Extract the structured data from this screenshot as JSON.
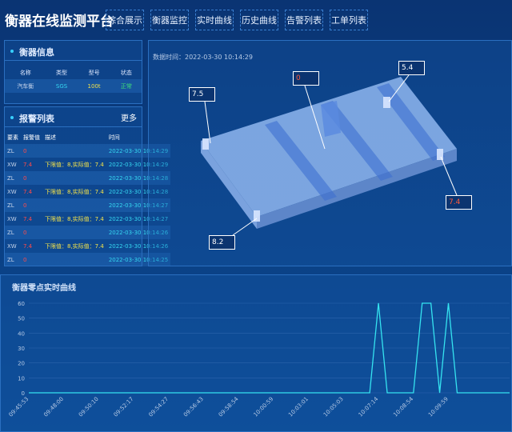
{
  "header": {
    "title": "衡器在线监测平台",
    "nav": [
      "综合展示",
      "衡器监控",
      "实时曲线",
      "历史曲线",
      "告警列表",
      "工单列表"
    ]
  },
  "info": {
    "title": "衡器信息",
    "columns": [
      "名称",
      "类型",
      "型号",
      "状态"
    ],
    "row": [
      "汽车衡",
      "SGS",
      "100t",
      "正常"
    ]
  },
  "alarms": {
    "title": "报警列表",
    "more": "更多",
    "columns": [
      "要素",
      "报警值",
      "描述",
      "时间"
    ],
    "rows": [
      [
        "ZL",
        "0",
        "",
        "2022-03-30 10:14:29"
      ],
      [
        "XW",
        "7.4",
        "下限值：8,实际值：7.4",
        "2022-03-30 10:14:29"
      ],
      [
        "ZL",
        "0",
        "",
        "2022-03-30 10:14:28"
      ],
      [
        "XW",
        "7.4",
        "下限值：8,实际值：7.4",
        "2022-03-30 10:14:28"
      ],
      [
        "ZL",
        "0",
        "",
        "2022-03-30 10:14:27"
      ],
      [
        "XW",
        "7.4",
        "下限值：8,实际值：7.4",
        "2022-03-30 10:14:27"
      ],
      [
        "ZL",
        "0",
        "",
        "2022-03-30 10:14:26"
      ],
      [
        "XW",
        "7.4",
        "下限值：8,实际值：7.4",
        "2022-03-30 10:14:26"
      ],
      [
        "ZL",
        "0",
        "",
        "2022-03-30 10:14:25"
      ]
    ]
  },
  "monitor": {
    "time": "数据时间：2022-03-30 10:14:29",
    "sensors": [
      "7.5",
      "0",
      "5.4",
      "7.4",
      "8.2"
    ]
  },
  "chart_data": {
    "type": "line",
    "title": "衡器零点实时曲线",
    "color": "#35e3f0",
    "ylim": [
      0,
      60
    ],
    "yticks": [
      0,
      10,
      20,
      30,
      40,
      50,
      60
    ],
    "grid": true,
    "categories": [
      "09:45:53",
      null,
      null,
      null,
      "09:48:00",
      null,
      null,
      null,
      "09:50:10",
      null,
      null,
      null,
      "09:52:17",
      null,
      null,
      null,
      "09:54:27",
      null,
      null,
      null,
      "09:56:43",
      null,
      null,
      null,
      "09:58:54",
      null,
      null,
      null,
      "10:00:59",
      null,
      null,
      null,
      "10:03:01",
      null,
      null,
      null,
      "10:05:03",
      null,
      null,
      null,
      "10:07:14",
      null,
      null,
      null,
      "10:08:54",
      null,
      null,
      null,
      "10:09:59",
      null,
      null,
      null,
      null,
      null,
      null,
      null
    ],
    "values": [
      0,
      0,
      0,
      0,
      0,
      0,
      0,
      0,
      0,
      0,
      0,
      0,
      0,
      0,
      0,
      0,
      0,
      0,
      0,
      0,
      0,
      0,
      0,
      0,
      0,
      0,
      0,
      0,
      0,
      0,
      0,
      0,
      0,
      0,
      0,
      0,
      0,
      0,
      0,
      0,
      60,
      0,
      0,
      0,
      0,
      60,
      60,
      0,
      60,
      0,
      0,
      0,
      0,
      0,
      0,
      0
    ]
  }
}
